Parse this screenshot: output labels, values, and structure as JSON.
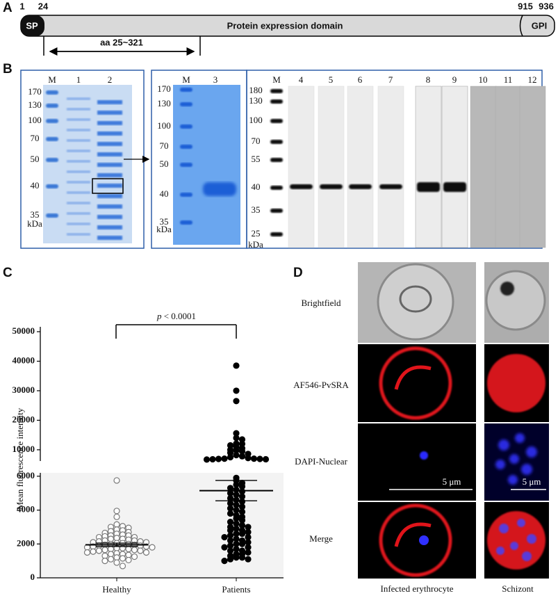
{
  "panel_a": {
    "letter": "A",
    "positions": [
      1,
      24,
      915,
      936
    ],
    "signal": "SP",
    "domain": "Protein expression domain",
    "anchor": "GPI",
    "region": "aa 25~321"
  },
  "panel_b": {
    "letter": "B",
    "gels": [
      {
        "lanes": [
          "M",
          "1",
          "2"
        ],
        "markers": [
          170,
          130,
          100,
          70,
          50,
          40,
          35
        ],
        "unit": "kDa"
      },
      {
        "lanes": [
          "M",
          "3"
        ],
        "markers": [
          170,
          130,
          100,
          70,
          50,
          40,
          35
        ],
        "unit": "kDa"
      },
      {
        "lanes": [
          "M",
          "4",
          "5",
          "6",
          "7",
          "8",
          "9",
          "10",
          "11",
          "12"
        ],
        "markers": [
          180,
          130,
          100,
          70,
          55,
          40,
          35,
          25
        ],
        "unit": "kDa"
      }
    ]
  },
  "chart_data": {
    "type": "dot",
    "letter": "C",
    "ylabel": "Mean fluorescence intensity",
    "categories": [
      "Healthy",
      "Patients"
    ],
    "groups": [
      {
        "color": "#777777",
        "filled": false,
        "values": [
          5750,
          3950,
          3600,
          3150,
          3050,
          3000,
          2950,
          2850,
          2800,
          2750,
          2700,
          2650,
          2600,
          2550,
          2500,
          2500,
          2450,
          2400,
          2400,
          2350,
          2300,
          2300,
          2250,
          2200,
          2200,
          2150,
          2150,
          2100,
          2100,
          2050,
          2050,
          2000,
          2000,
          1950,
          1950,
          1900,
          1900,
          1850,
          1850,
          1800,
          1800,
          1750,
          1750,
          1700,
          1700,
          1650,
          1650,
          1600,
          1600,
          1550,
          1500,
          1500,
          1450,
          1400,
          1400,
          1350,
          1300,
          1250,
          1200,
          1150,
          1100,
          1050,
          1000,
          900,
          700
        ]
      },
      {
        "color": "#000000",
        "filled": true,
        "values": [
          38500,
          30000,
          26500,
          15600,
          14000,
          13500,
          12100,
          12000,
          11500,
          11000,
          10500,
          10000,
          9800,
          9500,
          9000,
          8600,
          8200,
          7800,
          7500,
          7200,
          7000,
          7000,
          6900,
          6900,
          6800,
          6800,
          6700,
          5900,
          5750,
          5600,
          5500,
          5400,
          5300,
          5200,
          5100,
          5000,
          4900,
          4800,
          4700,
          4600,
          4500,
          4400,
          4300,
          4200,
          4100,
          4000,
          3900,
          3800,
          3700,
          3600,
          3500,
          3400,
          3300,
          3200,
          3100,
          3000,
          3000,
          2900,
          2800,
          2800,
          2700,
          2600,
          2600,
          2500,
          2400,
          2400,
          2300,
          2200,
          2200,
          2100,
          2000,
          2000,
          1900,
          1800,
          1800,
          1700,
          1600,
          1600,
          1500,
          1400,
          1400,
          1300,
          1200,
          1200,
          1100,
          1100,
          1000
        ]
      }
    ],
    "means": [
      1950,
      5150
    ],
    "errors": [
      100,
      600
    ],
    "axis_segments": [
      {
        "ylim": [
          0,
          6200
        ],
        "yticks": [
          0,
          2000,
          4000,
          6000
        ]
      },
      {
        "ylim": [
          6200,
          50000
        ],
        "yticks": [
          10000,
          20000,
          30000,
          40000,
          50000
        ]
      }
    ],
    "annotation": {
      "symbol": "p",
      "text": "< 0.0001"
    }
  },
  "panel_d": {
    "letter": "D",
    "rows": [
      "Brightfield",
      "AF546-PvSRA",
      "DAPI-Nuclear",
      "Merge"
    ],
    "columns": [
      "Infected erythrocyte",
      "Schizont"
    ],
    "scale_bar": [
      "5 μm",
      "5 μm"
    ]
  }
}
